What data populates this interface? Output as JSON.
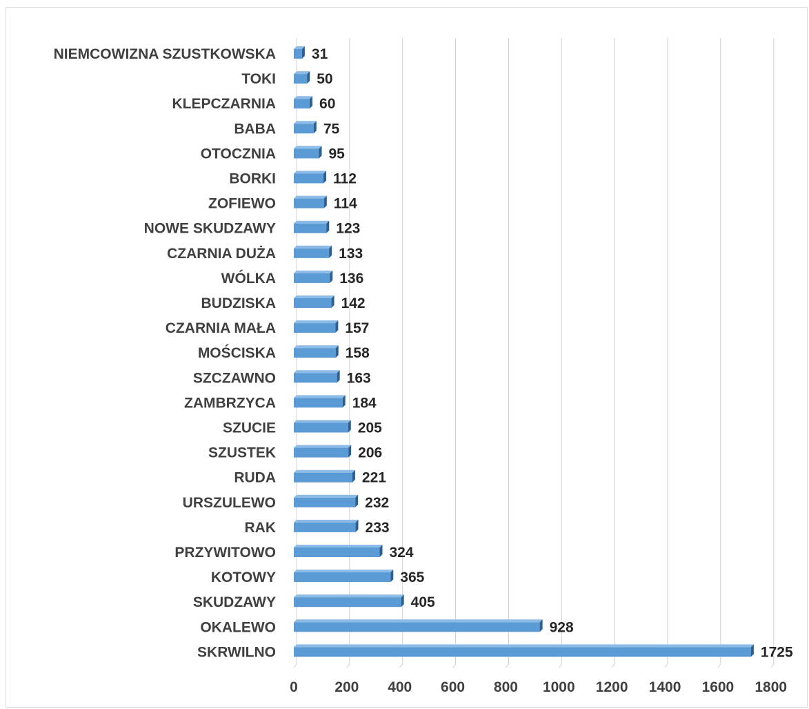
{
  "chart_data": {
    "type": "bar",
    "orientation": "horizontal",
    "categories": [
      "NIEMCOWIZNA SZUSTKOWSKA",
      "TOKI",
      "KLEPCZARNIA",
      "BABA",
      "OTOCZNIA",
      "BORKI",
      "ZOFIEWO",
      "NOWE SKUDZAWY",
      "CZARNIA DUŻA",
      "WÓLKA",
      "BUDZISKA",
      "CZARNIA MAŁA",
      "MOŚCISKA",
      "SZCZAWNO",
      "ZAMBRZYCA",
      "SZUCIE",
      "SZUSTEK",
      "RUDA",
      "URSZULEWO",
      "RAK",
      "PRZYWITOWO",
      "KOTOWY",
      "SKUDZAWY",
      "OKALEWO",
      "SKRWILNO"
    ],
    "values": [
      31,
      50,
      60,
      75,
      95,
      112,
      114,
      123,
      133,
      136,
      142,
      157,
      158,
      163,
      184,
      205,
      206,
      221,
      232,
      233,
      324,
      365,
      405,
      928,
      1725
    ],
    "data_labels": [
      "31",
      "50",
      "60",
      "75",
      "95",
      "112",
      "114",
      "123",
      "133",
      "136",
      "142",
      "157",
      "158",
      "163",
      "184",
      "205",
      "206",
      "221",
      "232",
      "233",
      "324",
      "365",
      "405",
      "928",
      "1725"
    ],
    "xlim": [
      0,
      1800
    ],
    "xticks": [
      0,
      200,
      400,
      600,
      800,
      1000,
      1200,
      1400,
      1600,
      1800
    ],
    "xtick_labels": [
      "0",
      "200",
      "400",
      "600",
      "800",
      "1000",
      "1200",
      "1400",
      "1600",
      "1800"
    ],
    "title": "",
    "xlabel": "",
    "ylabel": "",
    "grid": "vertical",
    "legend": "none",
    "style": "3d-bar"
  },
  "colors": {
    "bar_front": "#5b9bd5",
    "bar_top": "#8bbbe6",
    "bar_side": "#2f5f8f",
    "gridline": "#d0d0d0",
    "category_text": "#404040",
    "value_text": "#262626"
  }
}
